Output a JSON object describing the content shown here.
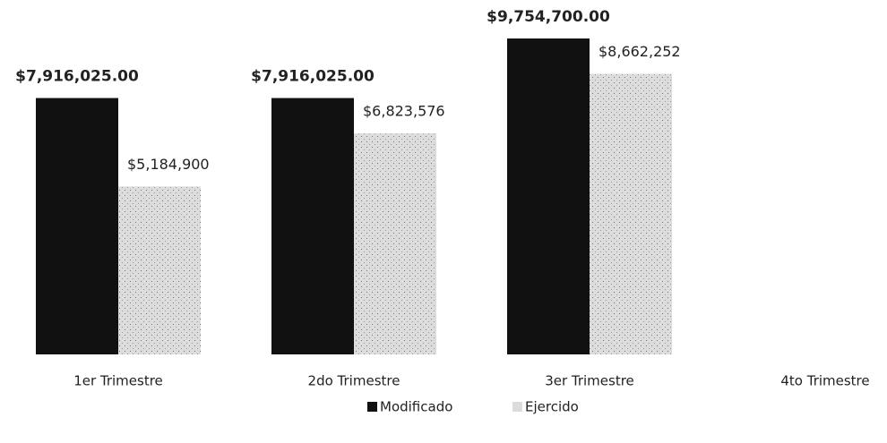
{
  "chart_data": {
    "type": "bar",
    "categories": [
      "1er Trimestre",
      "2do Trimestre",
      "3er Trimestre",
      "4to Trimestre"
    ],
    "series": [
      {
        "name": "Modificado",
        "color": "#111111",
        "values": [
          7916025,
          7916025,
          9754700,
          null
        ],
        "value_labels": [
          "$7,916,025.00",
          "$7,916,025.00",
          "$9,754,700.00",
          null
        ]
      },
      {
        "name": "Ejercido",
        "color": "#dcdcdc",
        "values": [
          5184900,
          6823576,
          8662252,
          null
        ],
        "value_labels": [
          "$5,184,900",
          "$6,823,576",
          "$8,662,252",
          null
        ]
      }
    ],
    "legend": "bottom"
  }
}
